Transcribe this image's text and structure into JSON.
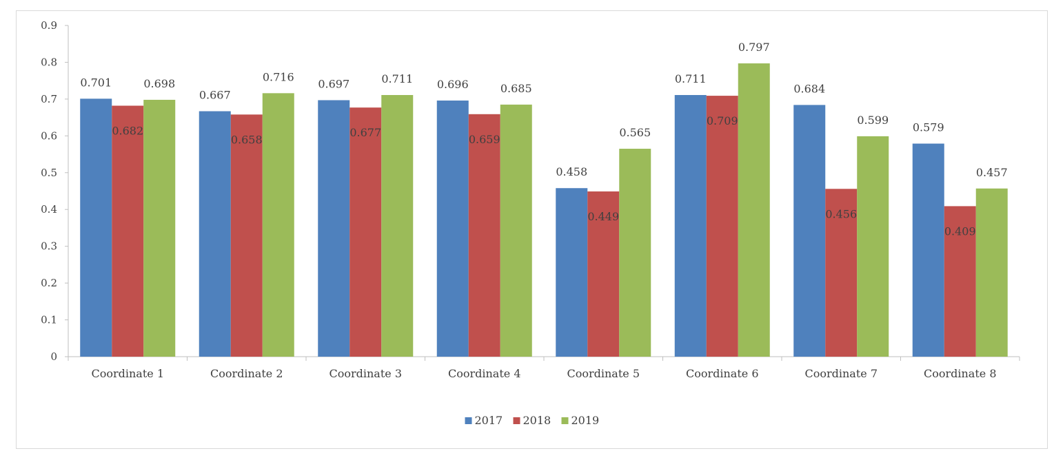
{
  "chart_data": {
    "type": "bar",
    "title": "",
    "xlabel": "",
    "ylabel": "",
    "ylim": [
      0,
      0.9
    ],
    "yticks": [
      "0",
      "0.1",
      "0.2",
      "0.3",
      "0.4",
      "0.5",
      "0.6",
      "0.7",
      "0.8",
      "0.9"
    ],
    "grid": false,
    "legend_position": "bottom",
    "categories": [
      "Coordinate 1",
      "Coordinate 2",
      "Coordinate 3",
      "Coordinate 4",
      "Coordinate 5",
      "Coordinate 6",
      "Coordinate 7",
      "Coordinate 8"
    ],
    "series": [
      {
        "name": "2017",
        "color": "#4f81bd",
        "values": [
          0.701,
          0.667,
          0.697,
          0.696,
          0.458,
          0.711,
          0.684,
          0.579
        ],
        "labels": [
          "0.701",
          "0.667",
          "0.697",
          "0.696",
          "0.458",
          "0.711",
          "0.684",
          "0.579"
        ]
      },
      {
        "name": "2018",
        "color": "#c0504d",
        "values": [
          0.682,
          0.658,
          0.677,
          0.659,
          0.449,
          0.709,
          0.456,
          0.409
        ],
        "labels": [
          "0.682",
          "0.658",
          "0.677",
          "0.659",
          "0.449",
          "0.709",
          "0.456",
          "0.409"
        ]
      },
      {
        "name": "2019",
        "color": "#9bbb59",
        "values": [
          0.698,
          0.716,
          0.711,
          0.685,
          0.565,
          0.797,
          0.599,
          0.457
        ],
        "labels": [
          "0.698",
          "0.716",
          "0.711",
          "0.685",
          "0.565",
          "0.797",
          "0.599",
          "0.457"
        ]
      }
    ]
  }
}
